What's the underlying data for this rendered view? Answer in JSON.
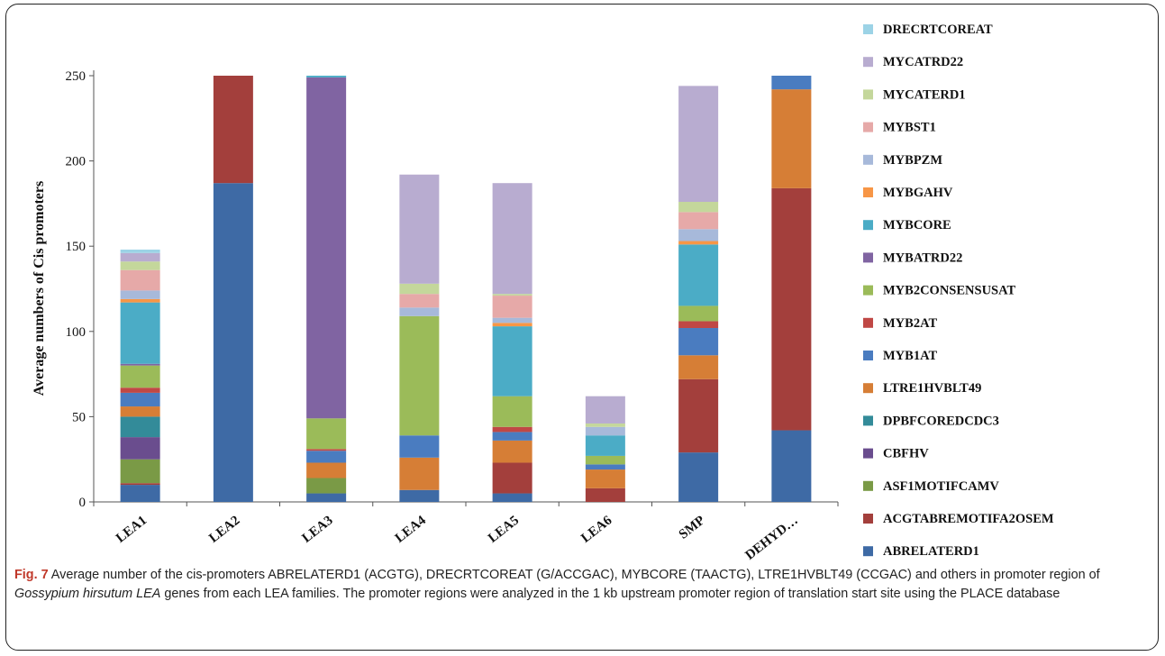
{
  "chart_data": {
    "type": "bar",
    "stacked": true,
    "ylabel": "Average numbers of Cis promoters",
    "ylim": [
      0,
      250
    ],
    "yticks": [
      0,
      50,
      100,
      150,
      200,
      250
    ],
    "grid": false,
    "legend_position": "right",
    "categories": [
      "LEA1",
      "LEA2",
      "LEA3",
      "LEA4",
      "LEA5",
      "LEA6",
      "SMP",
      "DEHYD…"
    ],
    "series": [
      {
        "name": "ABRELATERD1",
        "color": "#3e6aa5",
        "values": [
          10,
          187,
          5,
          7,
          5,
          0,
          29,
          42
        ]
      },
      {
        "name": "ACGTABREMOTIFA2OSEM",
        "color": "#a33f3c",
        "values": [
          1,
          63,
          0,
          0,
          18,
          8,
          43,
          142
        ]
      },
      {
        "name": "ASF1MOTIFCAMV",
        "color": "#7a9a46",
        "values": [
          14,
          0,
          9,
          0,
          0,
          0,
          0,
          0
        ]
      },
      {
        "name": "CBFHV",
        "color": "#6a4d8e",
        "values": [
          13,
          0,
          0,
          0,
          0,
          0,
          0,
          0
        ]
      },
      {
        "name": "DPBFCOREDCDC3",
        "color": "#338b99",
        "values": [
          12,
          0,
          0,
          0,
          0,
          0,
          0,
          0
        ]
      },
      {
        "name": "LTRE1HVBLT49",
        "color": "#d67e36",
        "values": [
          6,
          0,
          9,
          19,
          13,
          11,
          14,
          58
        ]
      },
      {
        "name": "MYB1AT",
        "color": "#4a7cc0",
        "values": [
          8,
          0,
          7,
          13,
          5,
          3,
          16,
          8
        ]
      },
      {
        "name": "MYB2AT",
        "color": "#c04845",
        "values": [
          3,
          0,
          1,
          0,
          3,
          0,
          4,
          0
        ]
      },
      {
        "name": "MYB2CONSENSUSAT",
        "color": "#9bbb59",
        "values": [
          13,
          0,
          18,
          70,
          18,
          5,
          9,
          0
        ]
      },
      {
        "name": "MYBATRD22",
        "color": "#8064a2",
        "values": [
          1,
          0,
          200,
          0,
          0,
          0,
          0,
          0
        ]
      },
      {
        "name": "MYBCORE",
        "color": "#4bacc6",
        "values": [
          36,
          0,
          1,
          0,
          41,
          12,
          36,
          0
        ]
      },
      {
        "name": "MYBGAHV",
        "color": "#f79646",
        "values": [
          2,
          0,
          0,
          0,
          2,
          0,
          2,
          0
        ]
      },
      {
        "name": "MYBPZM",
        "color": "#a7b9da",
        "values": [
          5,
          0,
          0,
          5,
          3,
          5,
          7,
          0
        ]
      },
      {
        "name": "MYBST1",
        "color": "#e6a9a8",
        "values": [
          12,
          0,
          0,
          8,
          13,
          0,
          10,
          0
        ]
      },
      {
        "name": "MYCATERD1",
        "color": "#c4d79b",
        "values": [
          5,
          0,
          0,
          6,
          1,
          2,
          6,
          0
        ]
      },
      {
        "name": "MYCATRD22",
        "color": "#b8acd0",
        "values": [
          5,
          0,
          0,
          64,
          65,
          16,
          68,
          0
        ]
      },
      {
        "name": "DRECRTCOREAT",
        "color": "#9cd3e6",
        "values": [
          2,
          0,
          0,
          0,
          0,
          0,
          0,
          0
        ]
      }
    ]
  },
  "caption": {
    "label": "Fig. 7",
    "text_1": " Average number of the cis-promoters ABRELATERD1 (ACGTG), DRECRTCOREAT (G/ACCGAC), MYBCORE (TAACTG), LTRE1HVBLT49 (CCGAC) and others in promoter region of ",
    "species": "Gossypium hirsutum LEA",
    "text_2": " genes from each LEA families. The promoter regions were analyzed in the 1 kb upstream promoter region of translation start site using the PLACE database"
  }
}
